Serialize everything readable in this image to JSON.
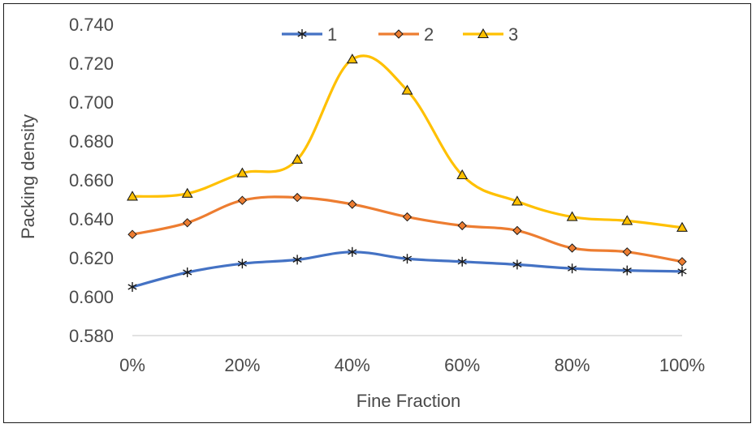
{
  "chart_data": {
    "type": "line",
    "title": "",
    "xlabel": "Fine Fraction",
    "ylabel": "Packing density",
    "categories": [
      "0%",
      "10%",
      "20%",
      "30%",
      "40%",
      "50%",
      "60%",
      "70%",
      "80%",
      "90%",
      "100%"
    ],
    "x_tick_labels": [
      "0%",
      "20%",
      "40%",
      "60%",
      "80%",
      "100%"
    ],
    "y_tick_labels": [
      "0.580",
      "0.600",
      "0.620",
      "0.640",
      "0.660",
      "0.680",
      "0.700",
      "0.720",
      "0.740"
    ],
    "ylim": [
      0.58,
      0.74
    ],
    "grid": false,
    "legend_position": "top-center",
    "series": [
      {
        "name": "1",
        "color": "#4472C4",
        "marker": "asterisk",
        "values": [
          0.605,
          0.6125,
          0.617,
          0.619,
          0.623,
          0.6195,
          0.618,
          0.6165,
          0.6145,
          0.6135,
          0.613
        ]
      },
      {
        "name": "2",
        "color": "#ED7D31",
        "marker": "diamond",
        "values": [
          0.632,
          0.638,
          0.6495,
          0.651,
          0.6475,
          0.641,
          0.6365,
          0.634,
          0.625,
          0.623,
          0.618
        ]
      },
      {
        "name": "3",
        "color": "#FFC000",
        "marker": "triangle",
        "values": [
          0.6515,
          0.653,
          0.6635,
          0.6705,
          0.722,
          0.706,
          0.6625,
          0.649,
          0.641,
          0.639,
          0.6355
        ]
      }
    ]
  }
}
